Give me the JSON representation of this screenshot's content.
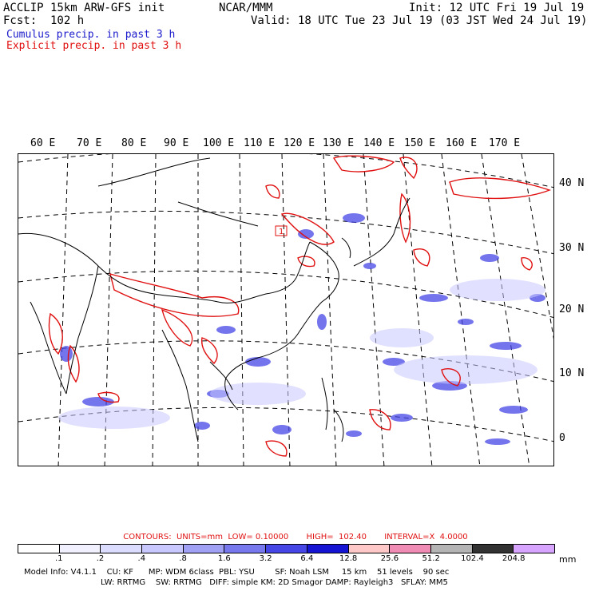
{
  "header": {
    "model": "ACCLIP 15km ARW-GFS init",
    "center": "NCAR/MMM",
    "init": "Init: 12 UTC Fri 19 Jul 19",
    "fcst": "Fcst:  102 h",
    "valid": "Valid: 18 UTC Tue 23 Jul 19 (03 JST Wed 24 Jul 19)",
    "legend_cumulus": "Cumulus precip. in past 3 h",
    "legend_explicit": "Explicit precip. in past 3 h"
  },
  "map": {
    "lon_labels": [
      "60 E",
      "70 E",
      "80 E",
      "90 E",
      "100 E",
      "110 E",
      "120 E",
      "130 E",
      "140 E",
      "150 E",
      "160 E",
      "170 E"
    ],
    "lat_labels": [
      "40 N",
      "30 N",
      "20 N",
      "10 N",
      "0"
    ],
    "marker_label": "1",
    "colors": {
      "coast": "#000000",
      "grid": "#000000",
      "cumulus": "#3a3ae0",
      "explicit": "#e01010"
    }
  },
  "contours": {
    "text": "CONTOURS:  UNITS=mm  LOW= 0.10000       HIGH=  102.40       INTERVAL=X  4.0000"
  },
  "colorbar": {
    "units": "mm",
    "labels": [
      ".1",
      ".2",
      ".4",
      ".8",
      "1.6",
      "3.2",
      "6.4",
      "12.8",
      "25.6",
      "51.2",
      "102.4",
      "204.8"
    ],
    "colors": [
      "#ffffff",
      "#f0f0ff",
      "#dcdcff",
      "#c8c8ff",
      "#a0a0f5",
      "#7878ee",
      "#4646e6",
      "#1414d2",
      "#ffc8c8",
      "#f08cb4",
      "#b4b4b4",
      "#323232",
      "#d7a5ff"
    ]
  },
  "footer": {
    "line1": "Model Info: V4.1.1    CU: KF      MP: WDM 6class  PBL: YSU        SF: Noah LSM     15 km    51 levels    90 sec",
    "line2": "LW: RRTMG    SW: RRTMG   DIFF: simple KM: 2D Smagor DAMP: Rayleigh3   SFLAY: MM5"
  }
}
